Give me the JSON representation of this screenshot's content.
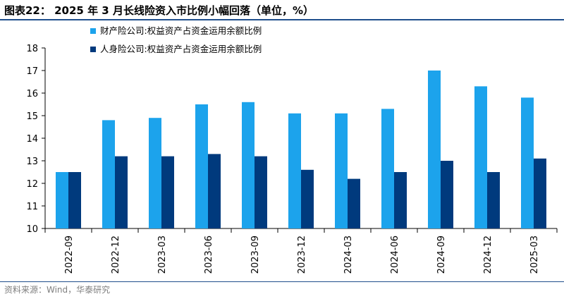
{
  "figure": {
    "title": "图表22：  2025 年 3 月长线险资入市比例小幅回落（单位，%）",
    "source": "资料来源：Wind，华泰研究"
  },
  "chart_data": {
    "type": "bar",
    "categories": [
      "2022-09",
      "2022-12",
      "2023-03",
      "2023-06",
      "2023-09",
      "2023-12",
      "2024-03",
      "2024-06",
      "2024-09",
      "2024-12",
      "2025-03"
    ],
    "series": [
      {
        "name": "财产险公司:权益资产占资金运用余额比例",
        "color": "#1ca3ec",
        "values": [
          12.5,
          14.8,
          14.9,
          15.5,
          15.6,
          15.1,
          15.1,
          15.3,
          17.0,
          16.3,
          15.8
        ]
      },
      {
        "name": "人身险公司:权益资产占资金运用余额比例",
        "color": "#003a7d",
        "values": [
          12.5,
          13.2,
          13.2,
          13.3,
          13.2,
          12.6,
          12.2,
          12.5,
          13.0,
          12.5,
          13.1
        ]
      }
    ],
    "ylim": [
      10,
      18
    ],
    "yticks": [
      10,
      11,
      12,
      13,
      14,
      15,
      16,
      17,
      18
    ],
    "xlabel": "",
    "ylabel": "",
    "grid": false,
    "legend_position": "top-left"
  }
}
